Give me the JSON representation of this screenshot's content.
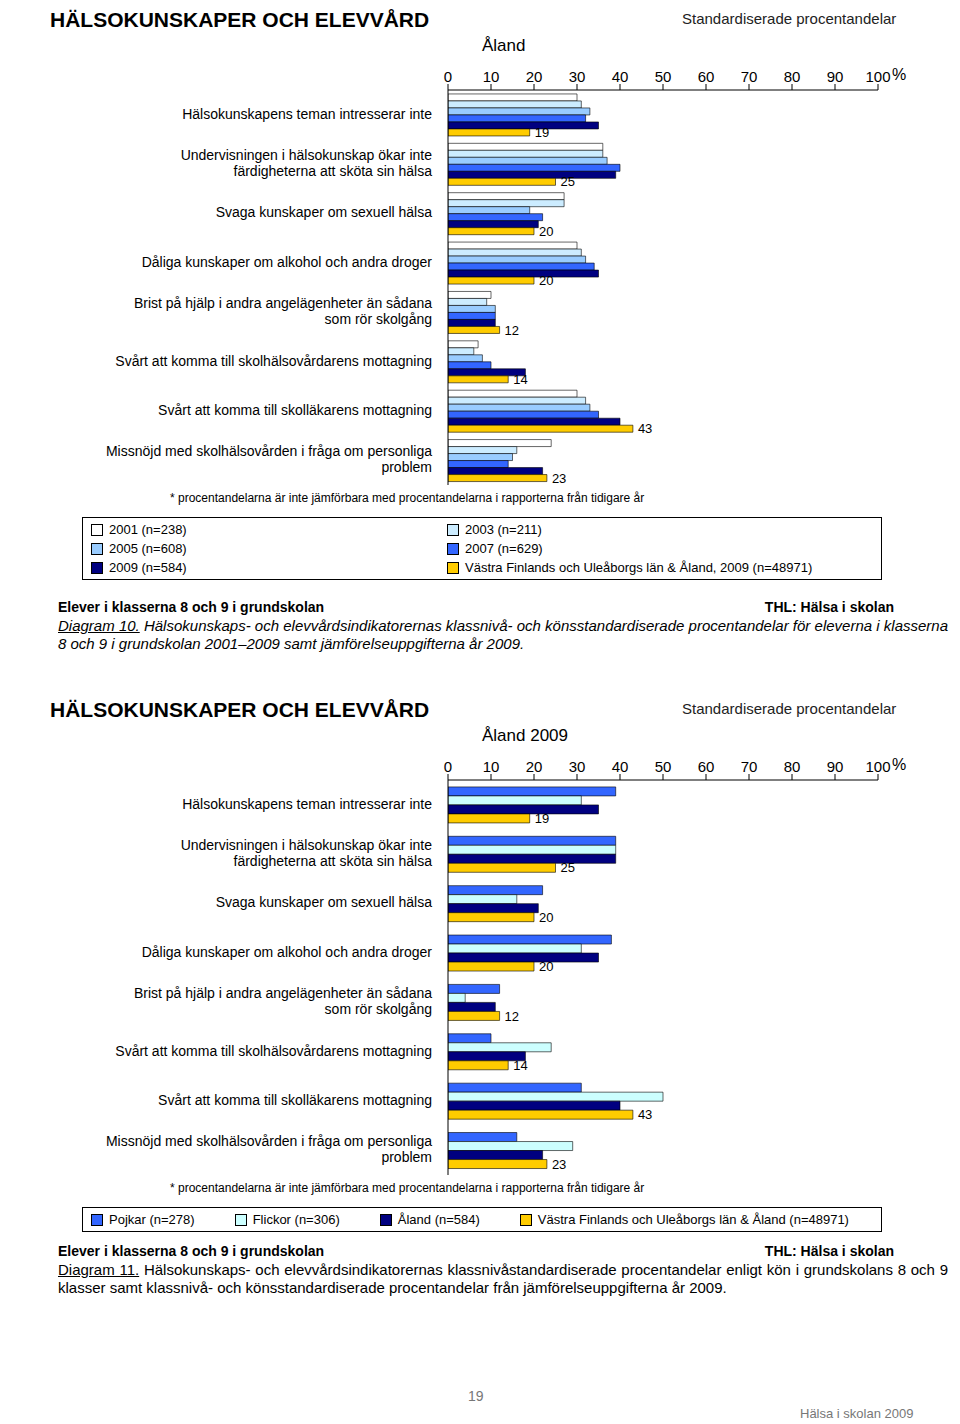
{
  "page": {
    "page_number": 19,
    "footer": "Hälsa i skolan 2009"
  },
  "chart_data": [
    {
      "type": "bar",
      "orientation": "horizontal",
      "title": "HÄLSOKUNSKAPER OCH ELEVVÅRD",
      "subtitle": "Åland",
      "xlabel": "%",
      "annotations": {
        "top_right": "Standardiserade procentandelar",
        "note": "* procentandelarna är inte jämförbara med procentandelarna i rapporterna från tidigare år",
        "population": "Elever i klasserna 8 och 9 i grundskolan",
        "source": "THL: Hälsa i skolan",
        "caption_label": "Diagram 10.",
        "caption": "Hälsokunskaps- och elevvårdsindikatorernas klassnivå- och könsstandardiserade procentandelar för eleverna i klasserna 8 och 9 i grundskolan 2001–2009 samt jämförelseuppgifterna år 2009."
      },
      "categories": [
        "Hälsokunskapens teman intresserar inte",
        "Undervisningen i hälsokunskap ökar inte färdigheterna att sköta sin hälsa",
        "Svaga kunskaper om sexuell hälsa",
        "Dåliga kunskaper om alkohol och andra droger",
        "Brist på hjälp i andra angelägenheter än sådana som rör skolgång",
        "Svårt att komma till skolhälsovårdarens mottagning",
        "Svårt att komma till skolläkarens mottagning",
        "Missnöjd med skolhälsovården i fråga om personliga problem"
      ],
      "series": [
        {
          "name": "2001 (n=238)",
          "color": "#ffffff",
          "values": [
            30,
            36,
            27,
            30,
            10,
            7,
            30,
            24
          ]
        },
        {
          "name": "2003 (n=211)",
          "color": "#ccecff",
          "values": [
            31,
            36,
            27,
            31,
            9,
            6,
            32,
            16
          ]
        },
        {
          "name": "2005 (n=608)",
          "color": "#99ccff",
          "values": [
            33,
            37,
            19,
            32,
            11,
            8,
            33,
            15
          ]
        },
        {
          "name": "2007 (n=629)",
          "color": "#3366ff",
          "values": [
            32,
            40,
            22,
            34,
            11,
            10,
            35,
            14
          ]
        },
        {
          "name": "2009 (n=584)",
          "color": "#000080",
          "values": [
            35,
            39,
            21,
            35,
            11,
            18,
            40,
            22
          ]
        },
        {
          "name": "Västra Finlands och Uleåborgs län & Åland, 2009 (n=48971)",
          "color": "#ffcc00",
          "values": [
            19,
            25,
            20,
            20,
            12,
            14,
            43,
            23
          ],
          "data_labels": true
        }
      ],
      "xlim": [
        0,
        100
      ],
      "xticks": [
        0,
        10,
        20,
        30,
        40,
        50,
        60,
        70,
        80,
        90,
        100
      ],
      "grid": false,
      "legend": "bottom"
    },
    {
      "type": "bar",
      "orientation": "horizontal",
      "title": "HÄLSOKUNSKAPER OCH ELEVVÅRD",
      "subtitle": "Åland 2009",
      "xlabel": "%",
      "annotations": {
        "top_right": "Standardiserade procentandelar",
        "note": "* procentandelarna är inte jämförbara med procentandelarna i rapporterna från tidigare år",
        "population": "Elever i klasserna 8 och 9 i grundskolan",
        "source": "THL: Hälsa i skolan",
        "caption_label": "Diagram 11.",
        "caption": "Hälsokunskaps- och elevvårdsindikatorernas klassnivåstandardiserade procentandelar enligt kön i grundskolans 8 och 9 klasser samt klassnivå- och könsstandardiserade procentandelar från jämförelseuppgifterna år 2009."
      },
      "categories": [
        "Hälsokunskapens teman intresserar inte",
        "Undervisningen i hälsokunskap ökar inte färdigheterna att sköta sin hälsa",
        "Svaga kunskaper om sexuell hälsa",
        "Dåliga kunskaper om alkohol och andra droger",
        "Brist på hjälp i andra angelägenheter än sådana som rör skolgång",
        "Svårt att komma till skolhälsovårdarens mottagning",
        "Svårt att komma till skolläkarens mottagning",
        "Missnöjd med skolhälsovården i fråga om personliga problem"
      ],
      "series": [
        {
          "name": "Pojkar (n=278)",
          "color": "#3366ff",
          "values": [
            39,
            39,
            22,
            38,
            12,
            10,
            31,
            16
          ]
        },
        {
          "name": "Flickor (n=306)",
          "color": "#ccffff",
          "values": [
            31,
            39,
            16,
            31,
            4,
            24,
            50,
            29
          ]
        },
        {
          "name": "Åland (n=584)",
          "color": "#000080",
          "values": [
            35,
            39,
            21,
            35,
            11,
            18,
            40,
            22
          ]
        },
        {
          "name": "Västra Finlands och Uleåborgs län & Åland (n=48971)",
          "color": "#ffcc00",
          "values": [
            19,
            25,
            20,
            20,
            12,
            14,
            43,
            23
          ],
          "data_labels": true
        }
      ],
      "xlim": [
        0,
        100
      ],
      "xticks": [
        0,
        10,
        20,
        30,
        40,
        50,
        60,
        70,
        80,
        90,
        100
      ],
      "grid": false,
      "legend": "bottom"
    }
  ]
}
